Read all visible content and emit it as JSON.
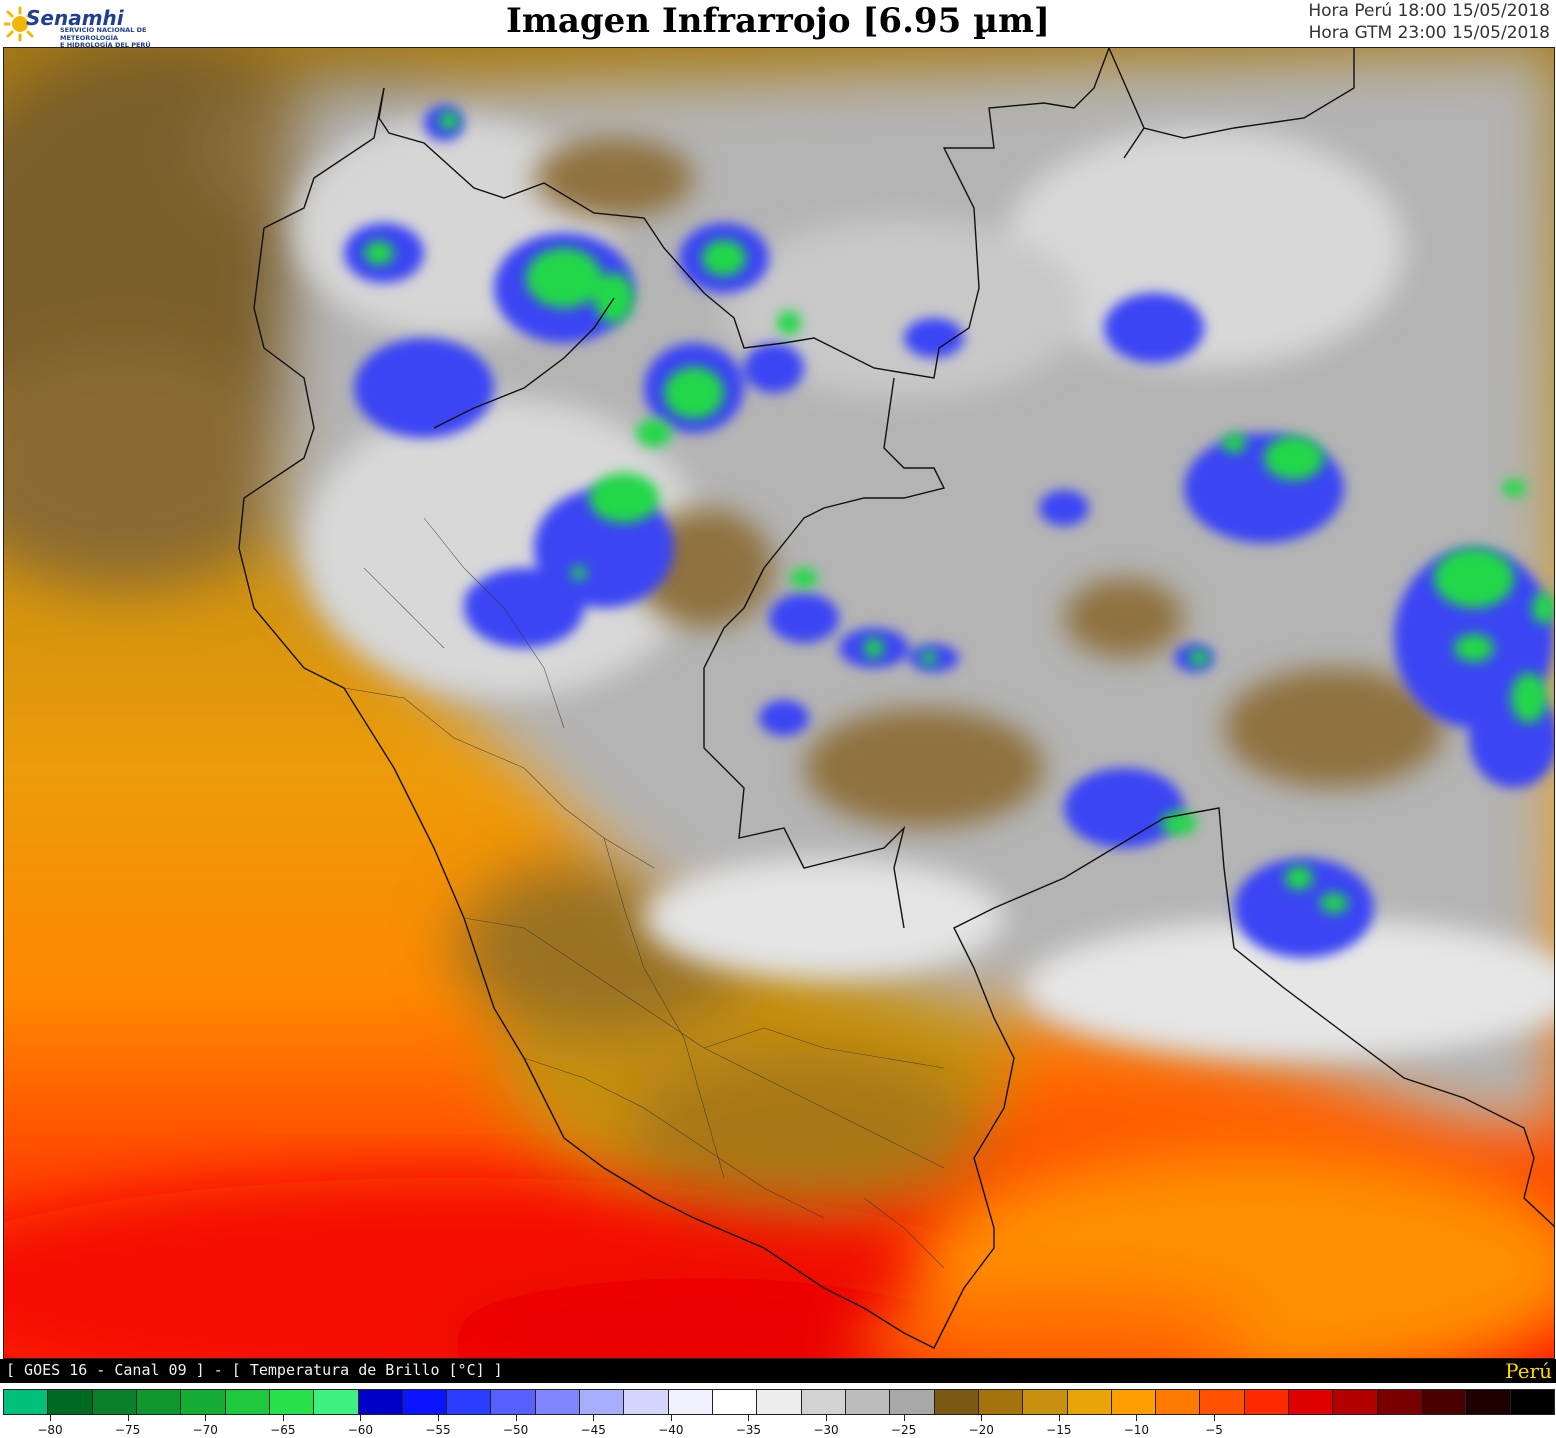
{
  "header": {
    "logo_name": "Senamhi",
    "logo_subtitle_line1": "SERVICIO NACIONAL DE METEOROLOGÍA",
    "logo_subtitle_line2": "E HIDROLOGÍA DEL PERÚ",
    "title": "Imagen Infrarrojo [6.95 µm]",
    "time_local": "Hora Perú 18:00 15/05/2018",
    "time_gmt": "Hora GTM 23:00 15/05/2018"
  },
  "footer": {
    "label": "[ GOES 16 - Canal 09 ] - [ Temperatura de Brillo [°C] ]",
    "country": "Perú"
  },
  "colorbar": {
    "colors": [
      "#00c07a",
      "#006a22",
      "#0a7f2c",
      "#0f962f",
      "#16ad35",
      "#1fc93d",
      "#26e14a",
      "#3df080",
      "#0000c8",
      "#0a14ff",
      "#2b3dff",
      "#5560ff",
      "#7f86ff",
      "#a7acff",
      "#d4d6ff",
      "#f1f1ff",
      "#ffffff",
      "#ededed",
      "#d2d2d2",
      "#bcbcbc",
      "#a8a8a8",
      "#7a5a12",
      "#a6720e",
      "#c8900f",
      "#e9a40a",
      "#ff9e00",
      "#ff7a00",
      "#ff5200",
      "#ff2a00",
      "#e00000",
      "#b30000",
      "#7a0000",
      "#4a0000",
      "#1f0000",
      "#000000"
    ],
    "ticks": [
      -80,
      -75,
      -70,
      -65,
      -60,
      -55,
      -50,
      -45,
      -40,
      -35,
      -30,
      -25,
      -20,
      -15,
      -10,
      -5
    ]
  }
}
